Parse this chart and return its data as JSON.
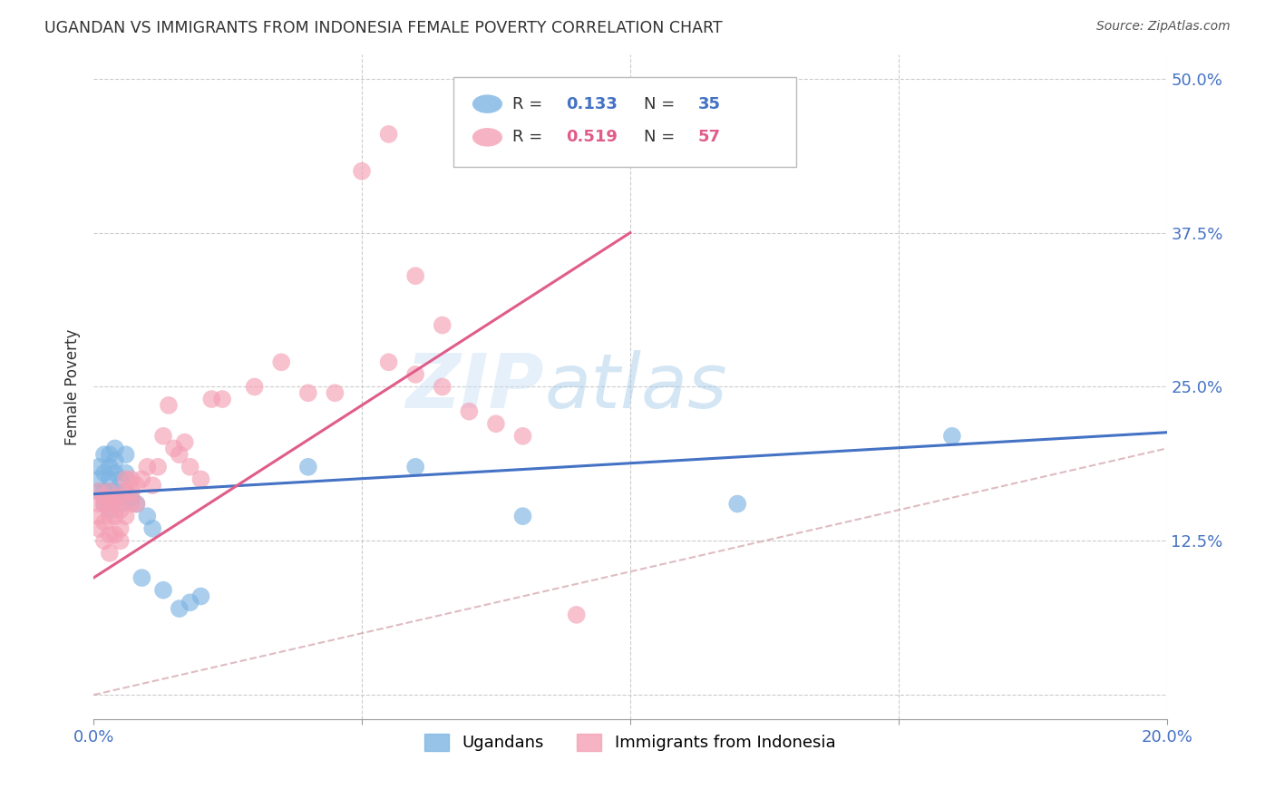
{
  "title": "UGANDAN VS IMMIGRANTS FROM INDONESIA FEMALE POVERTY CORRELATION CHART",
  "source": "Source: ZipAtlas.com",
  "ylabel": "Female Poverty",
  "xlim": [
    0.0,
    0.2
  ],
  "ylim": [
    -0.02,
    0.52
  ],
  "plot_ylim": [
    0.0,
    0.5
  ],
  "xticks": [
    0.0,
    0.05,
    0.1,
    0.15,
    0.2
  ],
  "xticklabels": [
    "0.0%",
    "",
    "",
    "",
    "20.0%"
  ],
  "ytick_right": [
    0.125,
    0.25,
    0.375,
    0.5
  ],
  "ytick_right_labels": [
    "12.5%",
    "25.0%",
    "37.5%",
    "50.0%"
  ],
  "ugandan_R": 0.133,
  "ugandan_N": 35,
  "indonesia_R": 0.519,
  "indonesia_N": 57,
  "ugandan_color": "#7EB4E3",
  "indonesia_color": "#F4A0B5",
  "ugandan_line_color": "#4472C4",
  "indonesia_line_color": "#E05C8A",
  "dashed_line_color": "#D0A0A8",
  "watermark_color": "#c8dff5",
  "ugandan_x": [
    0.001,
    0.001,
    0.001,
    0.002,
    0.002,
    0.002,
    0.002,
    0.003,
    0.003,
    0.003,
    0.003,
    0.003,
    0.004,
    0.004,
    0.004,
    0.004,
    0.005,
    0.005,
    0.006,
    0.006,
    0.006,
    0.007,
    0.008,
    0.009,
    0.01,
    0.011,
    0.013,
    0.016,
    0.018,
    0.02,
    0.04,
    0.06,
    0.08,
    0.12,
    0.16
  ],
  "ugandan_y": [
    0.175,
    0.185,
    0.165,
    0.195,
    0.18,
    0.165,
    0.155,
    0.195,
    0.185,
    0.175,
    0.165,
    0.15,
    0.2,
    0.19,
    0.18,
    0.165,
    0.175,
    0.155,
    0.195,
    0.18,
    0.165,
    0.16,
    0.155,
    0.095,
    0.145,
    0.135,
    0.085,
    0.07,
    0.075,
    0.08,
    0.185,
    0.185,
    0.145,
    0.155,
    0.21
  ],
  "indonesia_x": [
    0.001,
    0.001,
    0.001,
    0.001,
    0.002,
    0.002,
    0.002,
    0.002,
    0.003,
    0.003,
    0.003,
    0.003,
    0.003,
    0.004,
    0.004,
    0.004,
    0.004,
    0.005,
    0.005,
    0.005,
    0.005,
    0.006,
    0.006,
    0.006,
    0.007,
    0.007,
    0.007,
    0.008,
    0.008,
    0.009,
    0.01,
    0.011,
    0.012,
    0.013,
    0.014,
    0.015,
    0.016,
    0.017,
    0.018,
    0.02,
    0.022,
    0.024,
    0.03,
    0.035,
    0.04,
    0.045,
    0.05,
    0.055,
    0.06,
    0.065,
    0.055,
    0.06,
    0.065,
    0.07,
    0.075,
    0.08,
    0.09
  ],
  "indonesia_y": [
    0.165,
    0.155,
    0.145,
    0.135,
    0.16,
    0.155,
    0.14,
    0.125,
    0.165,
    0.155,
    0.145,
    0.13,
    0.115,
    0.16,
    0.155,
    0.145,
    0.13,
    0.16,
    0.15,
    0.135,
    0.125,
    0.175,
    0.165,
    0.145,
    0.175,
    0.165,
    0.155,
    0.17,
    0.155,
    0.175,
    0.185,
    0.17,
    0.185,
    0.21,
    0.235,
    0.2,
    0.195,
    0.205,
    0.185,
    0.175,
    0.24,
    0.24,
    0.25,
    0.27,
    0.245,
    0.245,
    0.425,
    0.455,
    0.34,
    0.3,
    0.27,
    0.26,
    0.25,
    0.23,
    0.22,
    0.21,
    0.065
  ],
  "ugandan_line_x0": 0.0,
  "ugandan_line_y0": 0.163,
  "ugandan_line_x1": 0.2,
  "ugandan_line_y1": 0.213,
  "indonesia_line_x0": 0.0,
  "indonesia_line_y0": 0.095,
  "indonesia_line_x1": 0.1,
  "indonesia_line_y1": 0.375
}
